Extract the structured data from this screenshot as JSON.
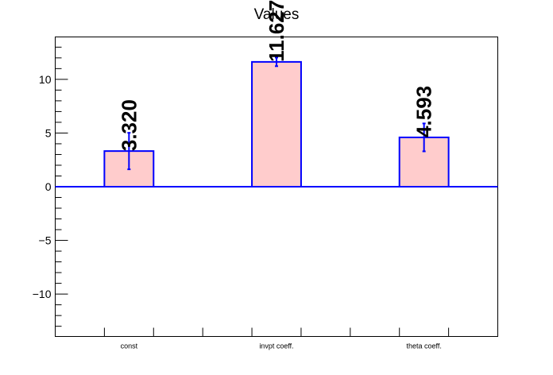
{
  "chart_data": {
    "type": "bar",
    "title": "Values",
    "xlabel": "",
    "ylabel": "",
    "categories": [
      "const",
      "invpt coeff.",
      "theta coeff."
    ],
    "values": [
      3.32,
      11.627,
      4.593
    ],
    "errors": [
      1.7,
      0.4,
      1.3
    ],
    "value_labels": [
      "3.320",
      "11.627",
      "4.593"
    ],
    "ylim": [
      -13.95,
      13.95
    ],
    "yticks": [
      -10,
      -5,
      0,
      5,
      10
    ],
    "ytick_labels": [
      "−10",
      "−5",
      "0",
      "5",
      "10"
    ],
    "grid": false,
    "colors": {
      "fill": "#ffcccc",
      "edge": "#0000ff",
      "error": "#0000ff",
      "zero_line": "#0000ff"
    }
  }
}
